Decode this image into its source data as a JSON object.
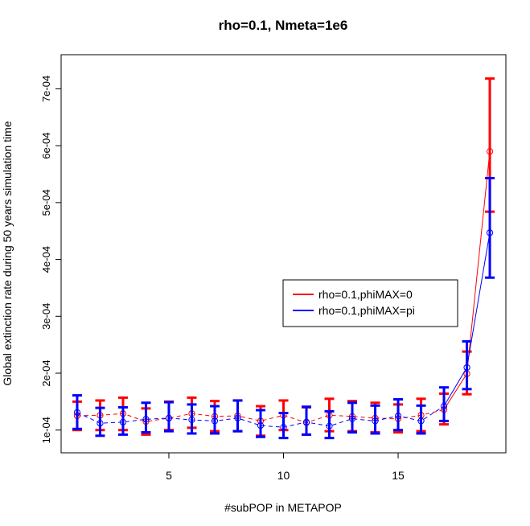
{
  "chart_data": {
    "type": "line",
    "title": "rho=0.1, Nmeta=1e6",
    "xlabel": "#subPOP in METAPOP",
    "ylabel": "Global extinction rate during 50 years simulation time",
    "xlim": [
      0.3,
      19.7
    ],
    "ylim": [
      6e-05,
      0.00076
    ],
    "xticks": [
      5,
      10,
      15
    ],
    "xtick_labels": [
      "5",
      "10",
      "15"
    ],
    "yticks": [
      0.0001,
      0.0002,
      0.0003,
      0.0004,
      0.0005,
      0.0006,
      0.0007
    ],
    "ytick_labels": [
      "1e-04",
      "2e-04",
      "3e-04",
      "4e-04",
      "5e-04",
      "6e-04",
      "7e-04"
    ],
    "grid": false,
    "legend_position": "center-right",
    "x": [
      1,
      2,
      3,
      4,
      5,
      6,
      7,
      8,
      9,
      10,
      11,
      12,
      13,
      14,
      15,
      16,
      17,
      18,
      19
    ],
    "series": [
      {
        "name": "rho=0.1,phiMAX=0",
        "color": "#ff0000",
        "line_style": "dashed-then-solid",
        "values": [
          0.000125,
          0.000126,
          0.000129,
          0.000115,
          0.000121,
          0.000129,
          0.000124,
          0.000125,
          0.000116,
          0.000126,
          0.000113,
          0.000126,
          0.000124,
          0.000121,
          0.00012,
          0.000126,
          0.000136,
          0.000199,
          0.00059
        ],
        "lower": [
          0.0001,
          0.0001,
          0.0001,
          9.2e-05,
          0.0001,
          0.000104,
          9.8e-05,
          9.8e-05,
          9e-05,
          0.0001,
          9.2e-05,
          9.8e-05,
          9.8e-05,
          9.6e-05,
          9.6e-05,
          9.8e-05,
          0.00011,
          0.000163,
          0.000484
        ],
        "upper": [
          0.00015,
          0.000152,
          0.000157,
          0.000138,
          0.00015,
          0.000157,
          0.000151,
          0.000152,
          0.000142,
          0.000152,
          0.00014,
          0.000155,
          0.000151,
          0.000148,
          0.000145,
          0.000155,
          0.000164,
          0.000238,
          0.000718
        ]
      },
      {
        "name": "rho=0.1,phiMAX=pi",
        "color": "#0000ff",
        "line_style": "dashed-then-solid",
        "values": [
          0.000131,
          0.000112,
          0.000114,
          0.000119,
          0.000121,
          0.000118,
          0.000116,
          0.000121,
          0.000108,
          0.000105,
          0.000114,
          0.000107,
          0.00012,
          0.000116,
          0.000125,
          0.000116,
          0.000142,
          0.00021,
          0.000447
        ],
        "lower": [
          0.000102,
          9e-05,
          9.2e-05,
          9.6e-05,
          9.8e-05,
          9.4e-05,
          9.4e-05,
          9.8e-05,
          8.8e-05,
          8.6e-05,
          9.2e-05,
          8.6e-05,
          9.6e-05,
          9.4e-05,
          0.0001,
          9.4e-05,
          0.000116,
          0.000172,
          0.000368
        ],
        "upper": [
          0.000161,
          0.000139,
          0.00014,
          0.000148,
          0.000149,
          0.000145,
          0.000142,
          0.000152,
          0.000135,
          0.00013,
          0.000141,
          0.000133,
          0.000148,
          0.000143,
          0.000154,
          0.000143,
          0.000175,
          0.000256,
          0.000543
        ]
      }
    ]
  }
}
